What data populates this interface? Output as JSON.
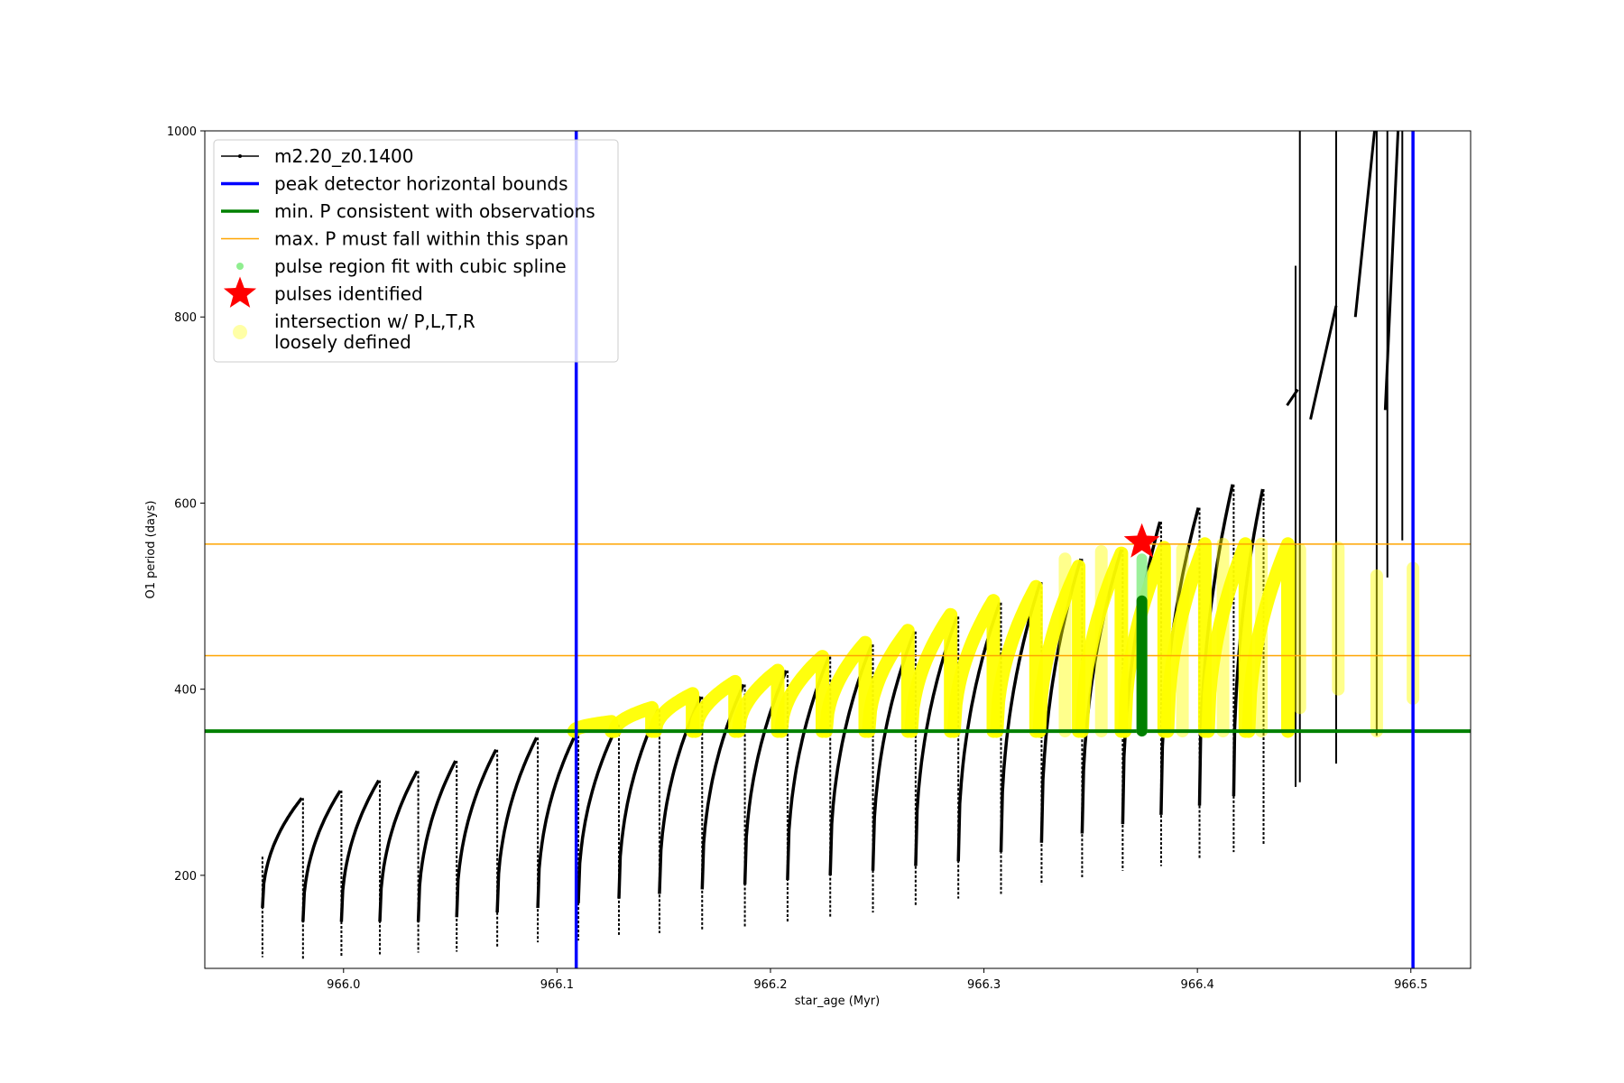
{
  "chart_data": {
    "type": "line",
    "xlabel": "star_age (Myr)",
    "ylabel": "O1 period (days)",
    "xlim": [
      965.935,
      966.528
    ],
    "ylim": [
      100,
      1000
    ],
    "xticks": [
      966.0,
      966.1,
      966.2,
      966.3,
      966.4,
      966.5
    ],
    "yticks": [
      200,
      400,
      600,
      800,
      1000
    ],
    "grid": false,
    "legend_placement": "upper-left",
    "colors": {
      "track": "#000000",
      "bounds": "#0000ff",
      "min_p": "#008000",
      "max_p": "#ffa500",
      "spline": "#90ee90",
      "pulse": "#ff0000",
      "loose": "#ffff00"
    },
    "legend": [
      {
        "label": "m2.20_z0.1400",
        "style": "track"
      },
      {
        "label": "peak detector horizontal bounds",
        "style": "bounds"
      },
      {
        "label": "min. P consistent with observations",
        "style": "min_p"
      },
      {
        "label": "max. P must fall within this span",
        "style": "max_p"
      },
      {
        "label": "pulse region fit with cubic spline",
        "style": "spline"
      },
      {
        "label": "pulses identified",
        "style": "pulse"
      },
      {
        "label": "intersection w/ P,L,T,R",
        "label2": "loosely defined",
        "style": "loose"
      }
    ],
    "vertical_bounds": [
      966.109,
      966.501
    ],
    "min_period": 355,
    "max_period_span": [
      436,
      556
    ],
    "pulses_identified": [
      {
        "x": 966.374,
        "y": 558
      }
    ],
    "spline_region": {
      "x": 966.374,
      "y": [
        355,
        540
      ]
    },
    "cycles": [
      {
        "start": 965.962,
        "min": 165,
        "peak": 283,
        "end": 965.981,
        "dip": 110
      },
      {
        "start": 965.981,
        "min": 150,
        "peak": 291,
        "end": 965.999,
        "dip": 112
      },
      {
        "start": 965.999,
        "min": 150,
        "peak": 302,
        "end": 966.017,
        "dip": 115
      },
      {
        "start": 966.017,
        "min": 150,
        "peak": 312,
        "end": 966.035,
        "dip": 117
      },
      {
        "start": 966.035,
        "min": 150,
        "peak": 323,
        "end": 966.053,
        "dip": 118
      },
      {
        "start": 966.053,
        "min": 155,
        "peak": 335,
        "end": 966.072,
        "dip": 122
      },
      {
        "start": 966.072,
        "min": 160,
        "peak": 348,
        "end": 966.091,
        "dip": 128
      },
      {
        "start": 966.091,
        "min": 165,
        "peak": 355,
        "end": 966.11,
        "dip": 130
      },
      {
        "start": 966.11,
        "min": 170,
        "peak": 362,
        "end": 966.129,
        "dip": 135
      },
      {
        "start": 966.129,
        "min": 175,
        "peak": 378,
        "end": 966.148,
        "dip": 138
      },
      {
        "start": 966.148,
        "min": 180,
        "peak": 392,
        "end": 966.168,
        "dip": 142
      },
      {
        "start": 966.168,
        "min": 185,
        "peak": 405,
        "end": 966.188,
        "dip": 145
      },
      {
        "start": 966.188,
        "min": 190,
        "peak": 420,
        "end": 966.208,
        "dip": 150
      },
      {
        "start": 966.208,
        "min": 195,
        "peak": 435,
        "end": 966.228,
        "dip": 155
      },
      {
        "start": 966.228,
        "min": 200,
        "peak": 448,
        "end": 966.248,
        "dip": 160
      },
      {
        "start": 966.248,
        "min": 205,
        "peak": 462,
        "end": 966.268,
        "dip": 168
      },
      {
        "start": 966.268,
        "min": 210,
        "peak": 478,
        "end": 966.288,
        "dip": 175
      },
      {
        "start": 966.288,
        "min": 215,
        "peak": 493,
        "end": 966.308,
        "dip": 180
      },
      {
        "start": 966.308,
        "min": 225,
        "peak": 515,
        "end": 966.327,
        "dip": 190
      },
      {
        "start": 966.327,
        "min": 235,
        "peak": 540,
        "end": 966.346,
        "dip": 198
      },
      {
        "start": 966.346,
        "min": 245,
        "peak": 550,
        "end": 966.365,
        "dip": 205
      },
      {
        "start": 966.365,
        "min": 255,
        "peak": 580,
        "end": 966.383,
        "dip": 210
      },
      {
        "start": 966.383,
        "min": 265,
        "peak": 595,
        "end": 966.401,
        "dip": 218
      },
      {
        "start": 966.401,
        "min": 275,
        "peak": 620,
        "end": 966.417,
        "dip": 225
      },
      {
        "start": 966.417,
        "min": 285,
        "peak": 615,
        "end": 966.431,
        "dip": 232
      }
    ],
    "yellow_arches": [
      {
        "start": 966.108,
        "end": 966.127,
        "peak": 365
      },
      {
        "start": 966.127,
        "end": 966.146,
        "peak": 380
      },
      {
        "start": 966.146,
        "end": 966.165,
        "peak": 395
      },
      {
        "start": 966.165,
        "end": 966.185,
        "peak": 408
      },
      {
        "start": 966.185,
        "end": 966.205,
        "peak": 420
      },
      {
        "start": 966.205,
        "end": 966.226,
        "peak": 435
      },
      {
        "start": 966.226,
        "end": 966.246,
        "peak": 450
      },
      {
        "start": 966.246,
        "end": 966.266,
        "peak": 463
      },
      {
        "start": 966.266,
        "end": 966.286,
        "peak": 480
      },
      {
        "start": 966.286,
        "end": 966.306,
        "peak": 495
      },
      {
        "start": 966.306,
        "end": 966.326,
        "peak": 510
      },
      {
        "start": 966.326,
        "end": 966.346,
        "peak": 532
      },
      {
        "start": 966.346,
        "end": 966.366,
        "peak": 546
      },
      {
        "start": 966.366,
        "end": 966.386,
        "peak": 552
      },
      {
        "start": 966.386,
        "end": 966.405,
        "peak": 556
      },
      {
        "start": 966.405,
        "end": 966.424,
        "peak": 556
      },
      {
        "start": 966.424,
        "end": 966.444,
        "peak": 556
      }
    ],
    "faint_columns": [
      {
        "x": 966.338,
        "y": [
          355,
          540
        ]
      },
      {
        "x": 966.355,
        "y": [
          355,
          548
        ]
      },
      {
        "x": 966.393,
        "y": [
          355,
          550
        ]
      },
      {
        "x": 966.412,
        "y": [
          355,
          556
        ]
      },
      {
        "x": 966.43,
        "y": [
          355,
          556
        ]
      },
      {
        "x": 966.448,
        "y": [
          380,
          550
        ]
      },
      {
        "x": 966.466,
        "y": [
          400,
          552
        ]
      },
      {
        "x": 966.484,
        "y": [
          355,
          522
        ]
      },
      {
        "x": 966.501,
        "y": [
          390,
          530
        ]
      }
    ],
    "spikes": [
      {
        "x": 966.446,
        "y": [
          295,
          855
        ]
      },
      {
        "x": 966.448,
        "y": [
          300,
          1000
        ]
      },
      {
        "x": 966.465,
        "y": [
          320,
          1000
        ]
      },
      {
        "x": 966.484,
        "y": [
          350,
          1000
        ]
      },
      {
        "x": 966.489,
        "y": [
          520,
          1000
        ]
      },
      {
        "x": 966.496,
        "y": [
          560,
          1000
        ]
      }
    ],
    "upper_segments": [
      {
        "x": [
          966.442,
          966.447
        ],
        "y": [
          705,
          722
        ]
      },
      {
        "x": [
          966.453,
          966.465
        ],
        "y": [
          690,
          812
        ]
      },
      {
        "x": [
          966.474,
          966.483
        ],
        "y": [
          800,
          1000
        ]
      },
      {
        "x": [
          966.488,
          966.494
        ],
        "y": [
          700,
          1000
        ]
      }
    ]
  }
}
